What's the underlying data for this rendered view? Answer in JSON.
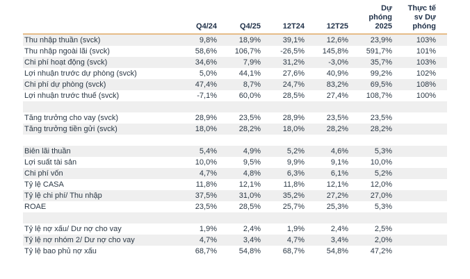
{
  "colors": {
    "header_rule": "#e6bc88",
    "row_stripe": "#efefef",
    "text": "#2b3845",
    "header_text": "#1f3048",
    "background": "#ffffff"
  },
  "table": {
    "headers": {
      "label": "",
      "q4_24": "Q4/24",
      "q4_25": "Q4/25",
      "t12_24": "12T24",
      "t12_25": "12T25",
      "du_phong_2025": "Dự\nphóng\n2025",
      "thuc_te_sv_du_phong": "Thực tế\nsv Dự\nphóng"
    },
    "rows": [
      {
        "label": "Thu nhập thuần (svck)",
        "values": [
          "9,8%",
          "18,9%",
          "39,1%",
          "12,6%",
          "23,9%",
          "103%"
        ]
      },
      {
        "label": "Thu nhập ngoài lãi (svck)",
        "values": [
          "58,6%",
          "106,7%",
          "-26,5%",
          "145,8%",
          "591,7%",
          "101%"
        ]
      },
      {
        "label": "Chi phí hoạt động (svck)",
        "values": [
          "34,6%",
          "7,9%",
          "31,2%",
          "-3,0%",
          "35,7%",
          "103%"
        ]
      },
      {
        "label": "Lợi nhuận trước dự phòng (svck)",
        "values": [
          "5,0%",
          "44,1%",
          "27,6%",
          "40,9%",
          "99,2%",
          "102%"
        ]
      },
      {
        "label": "Chi phí dự phòng (svck)",
        "values": [
          "47,4%",
          "8,7%",
          "24,7%",
          "83,2%",
          "69,5%",
          "108%"
        ]
      },
      {
        "label": "Lợi nhuận trước thuế (svck)",
        "values": [
          "-7,1%",
          "60,0%",
          "28,5%",
          "27,4%",
          "108,7%",
          "100%"
        ]
      },
      {
        "label": "",
        "values": [
          "",
          "",
          "",
          "",
          "",
          ""
        ]
      },
      {
        "label": "Tăng trưởng cho vay (svck)",
        "values": [
          "28,9%",
          "23,5%",
          "28,9%",
          "23,5%",
          "23,5%",
          ""
        ]
      },
      {
        "label": "Tăng trưởng tiền gửi (svck)",
        "values": [
          "18,0%",
          "28,2%",
          "18,0%",
          "28,2%",
          "28,2%",
          ""
        ]
      },
      {
        "label": "",
        "values": [
          "",
          "",
          "",
          "",
          "",
          ""
        ]
      },
      {
        "label": "Biên lãi thuần",
        "values": [
          "5,4%",
          "4,9%",
          "5,2%",
          "4,6%",
          "5,3%",
          ""
        ]
      },
      {
        "label": "Lợi suất tài sản",
        "values": [
          "10,0%",
          "9,5%",
          "9,9%",
          "9,1%",
          "10,0%",
          ""
        ]
      },
      {
        "label": "Chi phí vốn",
        "values": [
          "4,7%",
          "4,8%",
          "6,3%",
          "6,1%",
          "5,2%",
          ""
        ]
      },
      {
        "label": "Tỷ lệ CASA",
        "values": [
          "11,8%",
          "12,1%",
          "11,8%",
          "12,1%",
          "12,0%",
          ""
        ]
      },
      {
        "label": "Tỷ lệ chi phí/ Thu nhập",
        "values": [
          "37,5%",
          "31,0%",
          "35,2%",
          "27,2%",
          "27,0%",
          ""
        ]
      },
      {
        "label": "ROAE",
        "values": [
          "23,5%",
          "28,5%",
          "25,7%",
          "25,3%",
          "5,3%",
          ""
        ]
      },
      {
        "label": "",
        "values": [
          "",
          "",
          "",
          "",
          "",
          ""
        ]
      },
      {
        "label": "Tỷ lệ nợ xấu/ Dư nợ cho vay",
        "values": [
          "1,9%",
          "2,4%",
          "1,9%",
          "2,4%",
          "2,5%",
          ""
        ]
      },
      {
        "label": "Tỷ lệ nợ nhóm 2/ Dư nợ cho vay",
        "values": [
          "4,7%",
          "3,4%",
          "4,7%",
          "3,4%",
          "2,0%",
          ""
        ]
      },
      {
        "label": "Tỷ lệ bao phủ nợ xấu",
        "values": [
          "68,7%",
          "54,8%",
          "68,7%",
          "54,8%",
          "47,2%",
          ""
        ]
      }
    ]
  }
}
